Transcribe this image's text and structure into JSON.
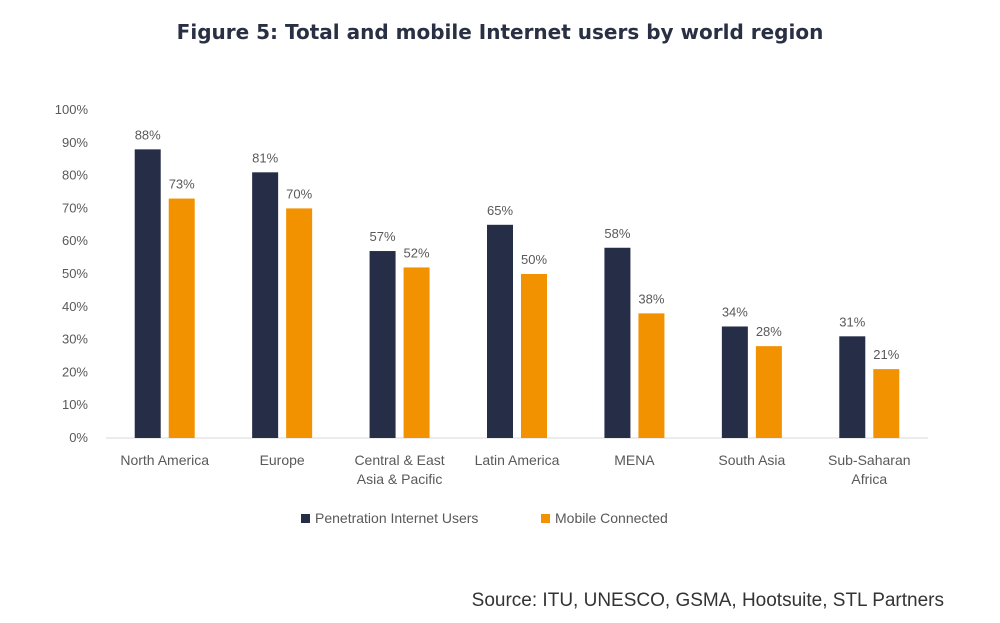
{
  "title": "Figure 5: Total and mobile Internet users by world region",
  "source": "Source: ITU, UNESCO, GSMA, Hootsuite, STL Partners",
  "chart_data": {
    "type": "bar",
    "title": "Figure 5: Total and mobile Internet users by world region",
    "categories": [
      [
        "North America"
      ],
      [
        "Europe"
      ],
      [
        "Central & East",
        "Asia & Pacific"
      ],
      [
        "Latin America"
      ],
      [
        "MENA"
      ],
      [
        "South Asia"
      ],
      [
        "Sub-Saharan",
        "Africa"
      ]
    ],
    "series": [
      {
        "name": "Penetration Internet Users",
        "color": "#262d47",
        "values": [
          88,
          81,
          57,
          65,
          58,
          34,
          31
        ],
        "labels": [
          "88%",
          "81%",
          "57%",
          "65%",
          "58%",
          "34%",
          "31%"
        ]
      },
      {
        "name": "Mobile Connected",
        "color": "#f39200",
        "values": [
          73,
          70,
          52,
          50,
          38,
          28,
          21
        ],
        "labels": [
          "73%",
          "70%",
          "52%",
          "50%",
          "38%",
          "28%",
          "21%"
        ]
      }
    ],
    "yticks": [
      "0%",
      "10%",
      "20%",
      "30%",
      "40%",
      "50%",
      "60%",
      "70%",
      "80%",
      "90%",
      "100%"
    ],
    "ylim": [
      0,
      100
    ],
    "grid": false,
    "legend_position": "bottom"
  }
}
